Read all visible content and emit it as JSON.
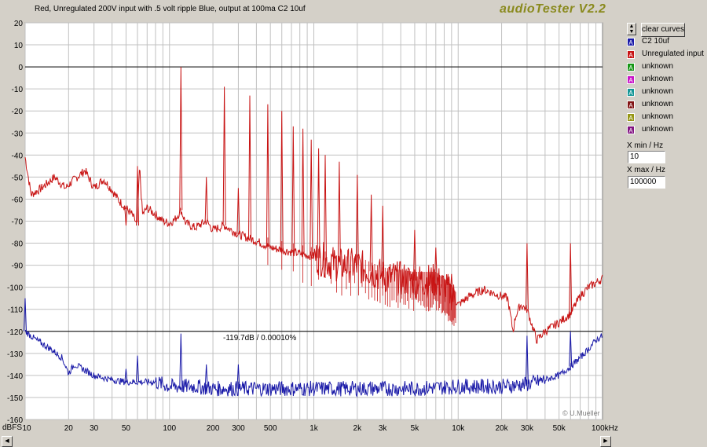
{
  "header": {
    "caption": "Red, Unregulated 200V input with .5 volt ripple Blue, output at 100ma C2 10uf",
    "app_title": "audioTester V2.2"
  },
  "sidebar": {
    "clear_label": "clear curves",
    "legend": [
      {
        "label": "C2 10uf",
        "color": "#1a1aa8"
      },
      {
        "label": "Unregulated input",
        "color": "#c81414"
      },
      {
        "label": "unknown",
        "color": "#169616"
      },
      {
        "label": "unknown",
        "color": "#c814c8"
      },
      {
        "label": "unknown",
        "color": "#149696"
      },
      {
        "label": "unknown",
        "color": "#821414"
      },
      {
        "label": "unknown",
        "color": "#969614"
      },
      {
        "label": "unknown",
        "color": "#821482"
      }
    ],
    "xmin_label": "X min / Hz",
    "xmin_value": "10",
    "xmax_label": "X max / Hz",
    "xmax_value": "100000"
  },
  "plot": {
    "y_unit": "dBFS",
    "readout": "-119.7dB  /  0.00010%",
    "copyright": "© U.Mueller",
    "colors": {
      "red_trace": "#c81414",
      "blue_trace": "#1a1aa8",
      "background": "#ffffff",
      "grid": "#c0c0c0"
    }
  },
  "chart_data": {
    "type": "line",
    "title": "",
    "xlabel": "",
    "ylabel": "dBFS",
    "xscale": "log",
    "xlim": [
      10,
      100000
    ],
    "ylim": [
      -160,
      20
    ],
    "y_ticks": [
      "20",
      "10",
      "0",
      "-10",
      "-20",
      "-30",
      "-40",
      "-50",
      "-60",
      "-70",
      "-80",
      "-90",
      "-100",
      "-110",
      "-120",
      "-130",
      "-140",
      "-150",
      "-160"
    ],
    "x_ticks": [
      "10",
      "20",
      "30",
      "50",
      "100",
      "200",
      "300",
      "500",
      "1k",
      "2k",
      "3k",
      "5k",
      "10k",
      "20k",
      "30k",
      "50k",
      "100kHz"
    ],
    "reference_lines": [
      0,
      -120
    ],
    "series": [
      {
        "name": "Unregulated input",
        "color": "#c81414",
        "points": [
          [
            10,
            -41
          ],
          [
            11,
            -58
          ],
          [
            13,
            -55
          ],
          [
            16,
            -50
          ],
          [
            19,
            -55
          ],
          [
            22,
            -51
          ],
          [
            26,
            -47
          ],
          [
            30,
            -55
          ],
          [
            35,
            -51
          ],
          [
            40,
            -56
          ],
          [
            45,
            -61
          ],
          [
            50,
            -64
          ],
          [
            55,
            -67
          ],
          [
            60,
            -72
          ],
          [
            62,
            -45
          ],
          [
            65,
            -67
          ],
          [
            70,
            -64
          ],
          [
            80,
            -67
          ],
          [
            90,
            -70
          ],
          [
            100,
            -71
          ],
          [
            110,
            -69
          ],
          [
            120,
            -65
          ],
          [
            130,
            -71
          ],
          [
            150,
            -73
          ],
          [
            180,
            -70
          ],
          [
            200,
            -74
          ],
          [
            240,
            -72
          ],
          [
            300,
            -76
          ],
          [
            400,
            -79
          ],
          [
            500,
            -82
          ],
          [
            700,
            -84
          ],
          [
            1000,
            -86
          ],
          [
            1500,
            -90
          ],
          [
            2000,
            -90
          ],
          [
            3000,
            -95
          ],
          [
            5000,
            -97
          ],
          [
            7000,
            -97
          ],
          [
            8000,
            -100
          ],
          [
            9000,
            -103
          ],
          [
            10000,
            -108
          ],
          [
            12000,
            -104
          ],
          [
            15000,
            -101
          ],
          [
            18000,
            -103
          ],
          [
            22000,
            -105
          ],
          [
            24000,
            -120
          ],
          [
            25000,
            -113
          ],
          [
            27000,
            -108
          ],
          [
            30000,
            -110
          ],
          [
            35000,
            -124
          ],
          [
            40000,
            -120
          ],
          [
            50000,
            -116
          ],
          [
            60000,
            -112
          ],
          [
            70000,
            -104
          ],
          [
            80000,
            -100
          ],
          [
            90000,
            -98
          ],
          [
            100000,
            -96
          ]
        ],
        "peaks": [
          [
            50,
            -72
          ],
          [
            60,
            -45
          ],
          [
            120,
            0
          ],
          [
            180,
            -50
          ],
          [
            240,
            -9
          ],
          [
            300,
            -55
          ],
          [
            360,
            -13
          ],
          [
            480,
            -17
          ],
          [
            600,
            -20
          ],
          [
            720,
            -27
          ],
          [
            840,
            -28
          ],
          [
            960,
            -33
          ],
          [
            1080,
            -37
          ],
          [
            1200,
            -40
          ],
          [
            1500,
            -43
          ],
          [
            2000,
            -49
          ],
          [
            2500,
            -58
          ],
          [
            3000,
            -63
          ],
          [
            5000,
            -74
          ],
          [
            7000,
            -82
          ],
          [
            9000,
            -94
          ],
          [
            30000,
            -80
          ],
          [
            60000,
            -80
          ]
        ]
      },
      {
        "name": "C2 10uf",
        "color": "#1a1aa8",
        "points": [
          [
            10,
            -120
          ],
          [
            12,
            -124
          ],
          [
            15,
            -128
          ],
          [
            18,
            -132
          ],
          [
            20,
            -139
          ],
          [
            22,
            -135
          ],
          [
            25,
            -137
          ],
          [
            30,
            -140
          ],
          [
            40,
            -142
          ],
          [
            50,
            -143
          ],
          [
            60,
            -143
          ],
          [
            80,
            -143
          ],
          [
            100,
            -145
          ],
          [
            150,
            -145
          ],
          [
            200,
            -146
          ],
          [
            300,
            -146
          ],
          [
            500,
            -146
          ],
          [
            1000,
            -146
          ],
          [
            2000,
            -146
          ],
          [
            5000,
            -146
          ],
          [
            10000,
            -145
          ],
          [
            20000,
            -145
          ],
          [
            30000,
            -144
          ],
          [
            40000,
            -142
          ],
          [
            50000,
            -140
          ],
          [
            60000,
            -136
          ],
          [
            70000,
            -132
          ],
          [
            80000,
            -128
          ],
          [
            90000,
            -124
          ],
          [
            100000,
            -122
          ]
        ],
        "peaks": [
          [
            10,
            -105
          ],
          [
            50,
            -137
          ],
          [
            60,
            -131
          ],
          [
            120,
            -121
          ],
          [
            180,
            -135
          ],
          [
            300,
            -135
          ],
          [
            30000,
            -122
          ],
          [
            60000,
            -120
          ]
        ]
      }
    ]
  }
}
